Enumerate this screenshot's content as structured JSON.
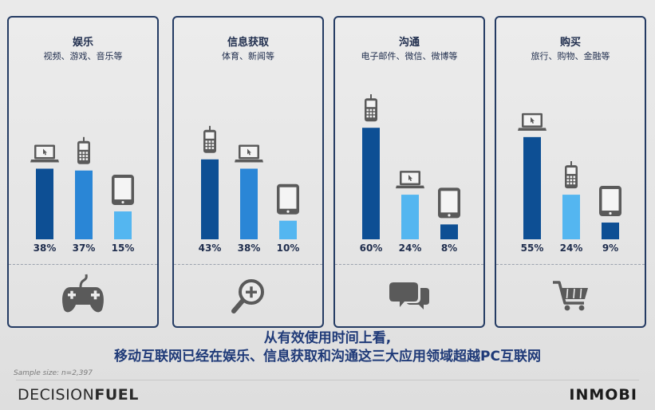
{
  "colors": {
    "dark": "#0d4f94",
    "mid": "#2a86d6",
    "light": "#54b6f0",
    "icon": "#5a5a5a",
    "border": "#243b63"
  },
  "chart_data": [
    {
      "type": "bar",
      "title": "娱乐",
      "subtitle": "视频、游戏、音乐等",
      "category_icon": "gamepad-icon",
      "ylim": [
        0,
        70
      ],
      "bars": [
        {
          "device": "laptop-icon",
          "value": 38,
          "label": "38%",
          "color": "dark"
        },
        {
          "device": "phone-icon",
          "value": 37,
          "label": "37%",
          "color": "mid"
        },
        {
          "device": "tablet-icon",
          "value": 15,
          "label": "15%",
          "color": "light"
        }
      ]
    },
    {
      "type": "bar",
      "title": "信息获取",
      "subtitle": "体育、新闻等",
      "category_icon": "magnifier-icon",
      "ylim": [
        0,
        70
      ],
      "bars": [
        {
          "device": "phone-icon",
          "value": 43,
          "label": "43%",
          "color": "dark"
        },
        {
          "device": "laptop-icon",
          "value": 38,
          "label": "38%",
          "color": "mid"
        },
        {
          "device": "tablet-icon",
          "value": 10,
          "label": "10%",
          "color": "light"
        }
      ]
    },
    {
      "type": "bar",
      "title": "沟通",
      "subtitle": "电子邮件、微信、微博等",
      "category_icon": "chat-bubbles-icon",
      "ylim": [
        0,
        70
      ],
      "bars": [
        {
          "device": "phone-icon",
          "value": 60,
          "label": "60%",
          "color": "dark"
        },
        {
          "device": "laptop-icon",
          "value": 24,
          "label": "24%",
          "color": "light"
        },
        {
          "device": "tablet-icon",
          "value": 8,
          "label": "8%",
          "color": "dark"
        }
      ]
    },
    {
      "type": "bar",
      "title": "购买",
      "subtitle": "旅行、购物、金融等",
      "category_icon": "shopping-cart-icon",
      "ylim": [
        0,
        70
      ],
      "bars": [
        {
          "device": "laptop-icon",
          "value": 55,
          "label": "55%",
          "color": "dark"
        },
        {
          "device": "phone-icon",
          "value": 24,
          "label": "24%",
          "color": "light"
        },
        {
          "device": "tablet-icon",
          "value": 9,
          "label": "9%",
          "color": "dark"
        }
      ]
    }
  ],
  "caption": {
    "line1": "从有效使用时间上看,",
    "line2": "移动互联网已经在娱乐、信息获取和沟通这三大应用领域超越PC互联网"
  },
  "sample_size": "Sample size: n=2,397",
  "logos": {
    "left_a": "DECISION",
    "left_b": "FUEL",
    "right": "INMOBI"
  }
}
